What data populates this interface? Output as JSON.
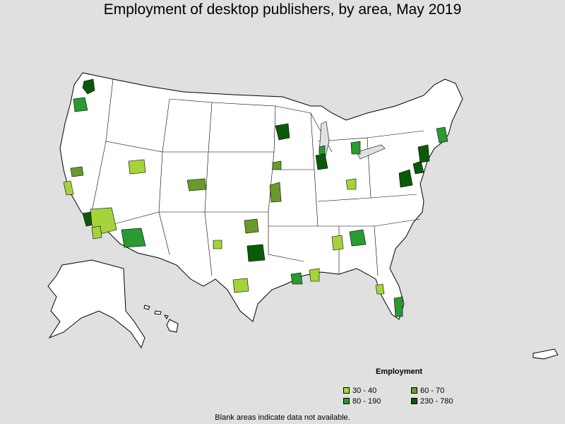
{
  "title": "Employment of desktop publishers, by area, May 2019",
  "legend": {
    "title": "Employment",
    "items": [
      {
        "label": "30 - 40",
        "color": "#a4d43a"
      },
      {
        "label": "60 - 70",
        "color": "#6a9a2a"
      },
      {
        "label": "80 - 190",
        "color": "#2a9a32"
      },
      {
        "label": "230 - 780",
        "color": "#0a5a0a"
      }
    ]
  },
  "note": "Blank areas indicate data not available.",
  "colors": {
    "background": "#e0e0e0",
    "land": "#ffffff",
    "border": "#000000"
  }
}
